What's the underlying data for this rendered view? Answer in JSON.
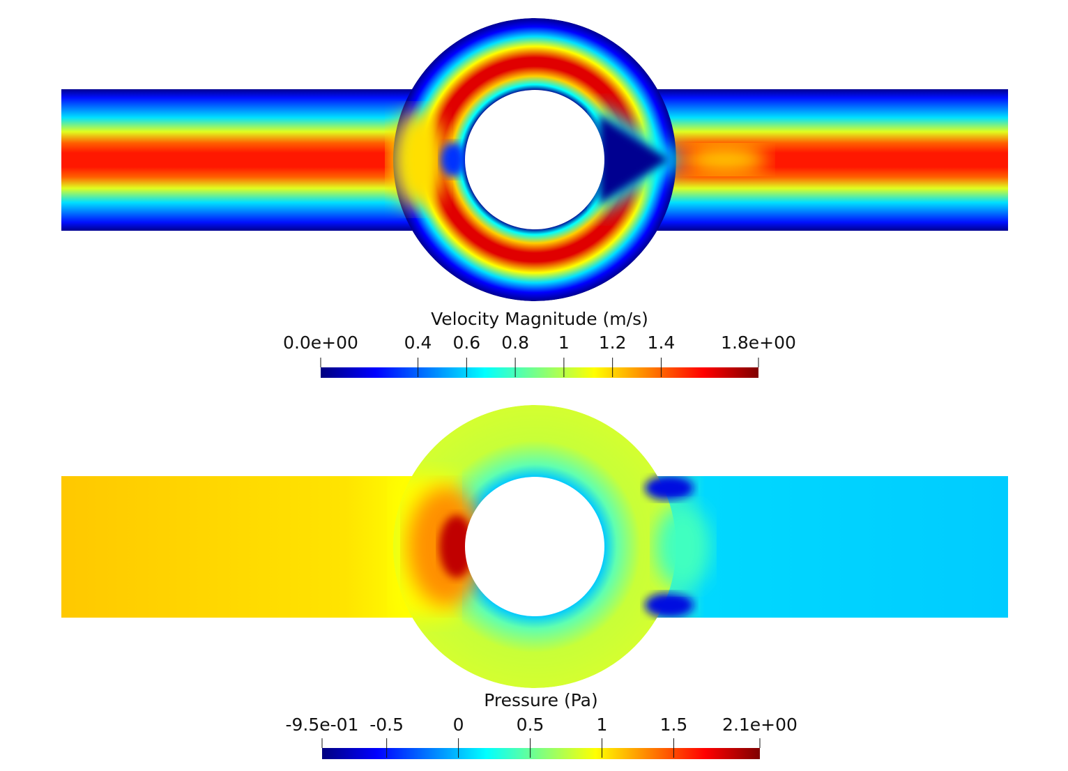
{
  "chart_data": [
    {
      "type": "heatmap",
      "field": "velocity magnitude",
      "colormap": "jet",
      "colormap_colors": [
        "#00007f",
        "#0000ff",
        "#00ffff",
        "#ffff00",
        "#ff0000",
        "#7f0000"
      ],
      "title": "Velocity Magnitude (m/s)",
      "range": [
        0.0,
        1.8
      ],
      "range_labels": [
        "0.0e+00",
        "1.8e+00"
      ],
      "ticks": [
        0.4,
        0.6,
        0.8,
        1,
        1.2,
        1.4
      ],
      "tick_labels": [
        "0.4",
        "0.6",
        "0.8",
        "1",
        "1.2",
        "1.4"
      ]
    },
    {
      "type": "heatmap",
      "field": "pressure",
      "colormap": "jet",
      "colormap_colors": [
        "#00007f",
        "#0000ff",
        "#00ffff",
        "#ffff00",
        "#ff0000",
        "#7f0000"
      ],
      "title": "Pressure (Pa)",
      "range": [
        -0.95,
        2.1
      ],
      "range_labels": [
        "-9.5e-01",
        "2.1e+00"
      ],
      "ticks": [
        -0.5,
        0,
        0.5,
        1,
        1.5
      ],
      "tick_labels": [
        "-0.5",
        "0",
        "0.5",
        "1",
        "1.5"
      ]
    }
  ]
}
